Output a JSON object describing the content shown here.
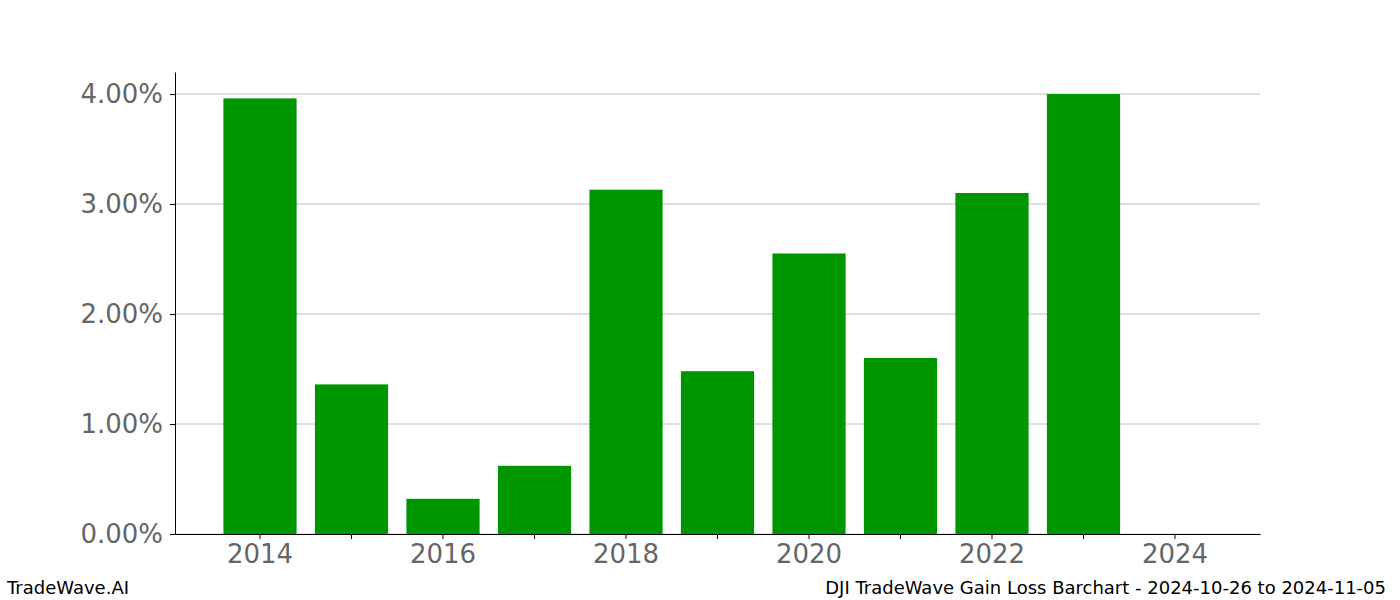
{
  "chart_data": {
    "type": "bar",
    "categories": [
      "2014",
      null,
      "2016",
      null,
      "2018",
      null,
      "2020",
      null,
      "2022",
      null,
      "2024"
    ],
    "values": [
      3.96,
      1.36,
      0.32,
      0.62,
      3.13,
      1.48,
      2.55,
      1.6,
      3.1,
      4.0,
      null
    ],
    "color": "#009600",
    "ylim": [
      0,
      4.2
    ],
    "yticks": [
      {
        "value": 0,
        "label": "0.00%"
      },
      {
        "value": 1,
        "label": "1.00%"
      },
      {
        "value": 2,
        "label": "2.00%"
      },
      {
        "value": 3,
        "label": "3.00%"
      },
      {
        "value": 4,
        "label": "4.00%"
      }
    ],
    "grid": true,
    "annotations": [
      "TradeWave.AI",
      "DJI TradeWave Gain Loss Barchart - 2024-10-26 to 2024-11-05"
    ]
  }
}
